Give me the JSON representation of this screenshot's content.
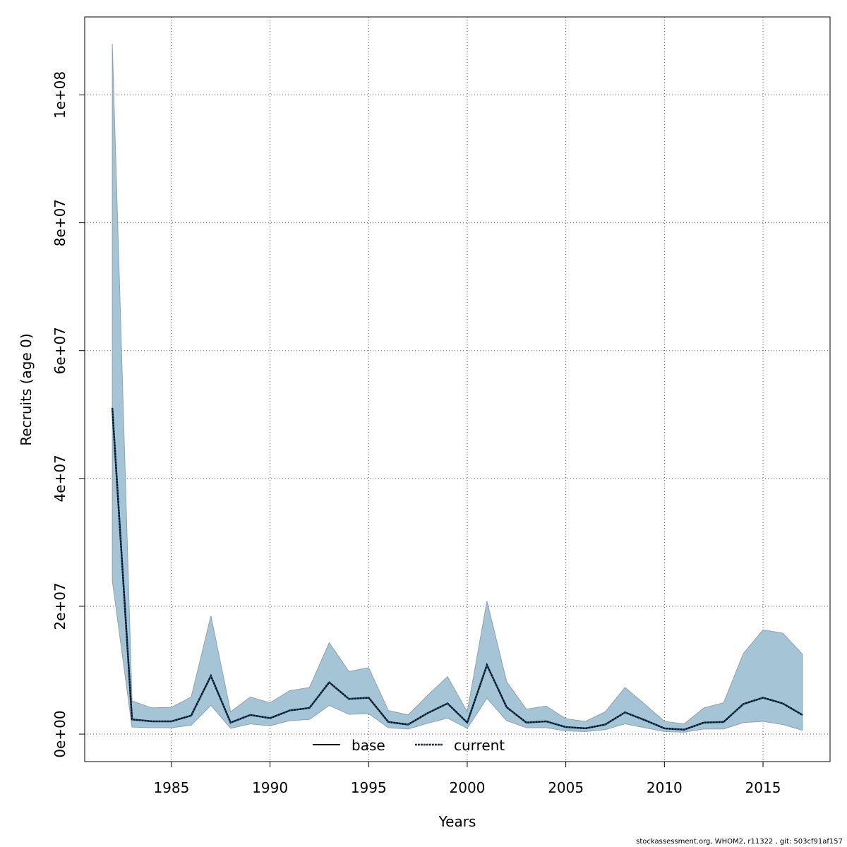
{
  "chart_data": {
    "type": "line",
    "title": "",
    "xlabel": "Years",
    "ylabel": "Recruits (age 0)",
    "xlim": [
      1980.6,
      2018.4
    ],
    "ylim": [
      -4300000,
      112200000
    ],
    "x_ticks": [
      1985,
      1990,
      1995,
      2000,
      2005,
      2010,
      2015
    ],
    "x_tick_labels": [
      "1985",
      "1990",
      "1995",
      "2000",
      "2005",
      "2010",
      "2015"
    ],
    "y_ticks": [
      0,
      20000000,
      40000000,
      60000000,
      80000000,
      100000000
    ],
    "y_tick_labels": [
      "0e+00",
      "2e+07",
      "4e+07",
      "6e+07",
      "8e+07",
      "1e+08"
    ],
    "grid": true,
    "legend_position": "bottom",
    "x": [
      1982,
      1983,
      1984,
      1985,
      1986,
      1987,
      1988,
      1989,
      1990,
      1991,
      1992,
      1993,
      1994,
      1995,
      1996,
      1997,
      1998,
      1999,
      2000,
      2001,
      2002,
      2003,
      2004,
      2005,
      2006,
      2007,
      2008,
      2009,
      2010,
      2011,
      2012,
      2013,
      2014,
      2015,
      2016,
      2017
    ],
    "series": [
      {
        "name": "base",
        "line_style": "solid",
        "color": "#000000",
        "values": [
          51000000,
          2300000,
          2000000,
          2000000,
          2900000,
          9100000,
          1800000,
          3000000,
          2500000,
          3700000,
          4100000,
          8100000,
          5500000,
          5700000,
          1900000,
          1500000,
          3300000,
          4800000,
          1800000,
          10800000,
          4200000,
          1800000,
          2000000,
          1100000,
          900000,
          1500000,
          3400000,
          2200000,
          900000,
          700000,
          1800000,
          1900000,
          4700000,
          5700000,
          4800000,
          3000000
        ]
      },
      {
        "name": "current",
        "line_style": "dotted",
        "color": "#0b4f7c",
        "values": [
          51000000,
          2300000,
          2000000,
          2000000,
          2900000,
          9100000,
          1800000,
          3000000,
          2500000,
          3700000,
          4100000,
          8100000,
          5500000,
          5700000,
          1900000,
          1500000,
          3300000,
          4800000,
          1800000,
          10800000,
          4200000,
          1800000,
          2000000,
          1100000,
          900000,
          1500000,
          3400000,
          2200000,
          900000,
          700000,
          1800000,
          1900000,
          4700000,
          5700000,
          4800000,
          3000000
        ],
        "band_upper": [
          108000000,
          5200000,
          4100000,
          4200000,
          5800000,
          18500000,
          3500000,
          5800000,
          4900000,
          6800000,
          7300000,
          14300000,
          9800000,
          10400000,
          3700000,
          3000000,
          6100000,
          9000000,
          3500000,
          20800000,
          8200000,
          3900000,
          4400000,
          2400000,
          2000000,
          3500000,
          7300000,
          4700000,
          2000000,
          1600000,
          4100000,
          4900000,
          12600000,
          16300000,
          15800000,
          12500000
        ],
        "band_lower": [
          24000000,
          1100000,
          1000000,
          1000000,
          1400000,
          4500000,
          900000,
          1600000,
          1300000,
          2100000,
          2300000,
          4500000,
          3100000,
          3200000,
          1000000,
          800000,
          1700000,
          2500000,
          900000,
          5600000,
          2100000,
          1000000,
          1000000,
          500000,
          400000,
          700000,
          1600000,
          1000000,
          400000,
          300000,
          800000,
          800000,
          1800000,
          2000000,
          1500000,
          600000
        ],
        "band_color": "#a5c4d6"
      }
    ]
  },
  "footer_text": "stockassessment.org, WHOM2, r11322 , git: 503cf91af157"
}
